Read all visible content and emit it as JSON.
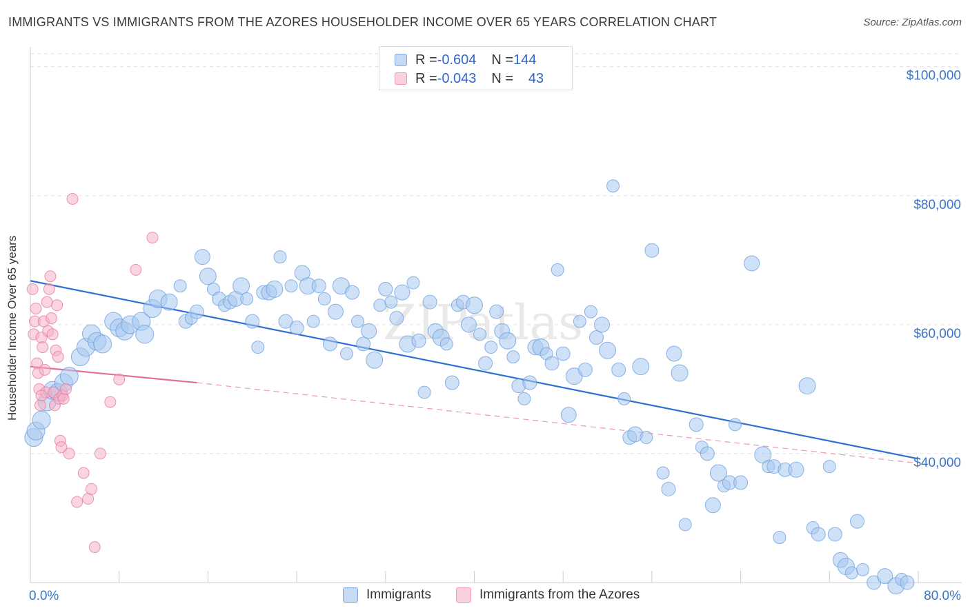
{
  "title": "IMMIGRANTS VS IMMIGRANTS FROM THE AZORES HOUSEHOLDER INCOME OVER 65 YEARS CORRELATION CHART",
  "source": "Source: ZipAtlas.com",
  "watermark": "ZIPatlas",
  "legend": {
    "rows": [
      {
        "r_label": "R = ",
        "r_value": "-0.604",
        "n_label": "N = ",
        "n_value": "144",
        "color": "#a8c8f0"
      },
      {
        "r_label": "R = ",
        "r_value": "-0.043",
        "n_label": "N = ",
        "n_value": "43",
        "color": "#f5b0c6"
      }
    ]
  },
  "bottom_legend": [
    {
      "label": "Immigrants",
      "color": "#a8c8f0"
    },
    {
      "label": "Immigrants from the Azores",
      "color": "#f5b0c6"
    }
  ],
  "chart_data": {
    "type": "scatter",
    "title": "IMMIGRANTS VS IMMIGRANTS FROM THE AZORES HOUSEHOLDER INCOME OVER 65 YEARS CORRELATION CHART",
    "xlabel": "",
    "ylabel": "Householder Income Over 65 years",
    "xlim": [
      0,
      80
    ],
    "ylim": [
      20000,
      102000
    ],
    "x_tick_labels": [
      "0.0%",
      "80.0%"
    ],
    "y_ticks": [
      40000,
      60000,
      80000,
      100000
    ],
    "y_tick_labels": [
      "$40,000",
      "$60,000",
      "$80,000",
      "$100,000"
    ],
    "grid": true,
    "legend_position": "top-center",
    "series": [
      {
        "name": "Immigrants",
        "color": "#6fa0e0",
        "fill": "#a8c8f0",
        "r": -0.604,
        "n": 144,
        "trend": {
          "x0": 0.0,
          "y0": 66800,
          "x1": 80.0,
          "y1": 39200,
          "dashed_to": null
        },
        "points": [
          [
            0.3,
            42500
          ],
          [
            0.5,
            43500
          ],
          [
            1.0,
            45200
          ],
          [
            1.5,
            48000
          ],
          [
            2.0,
            49800
          ],
          [
            2.5,
            49500
          ],
          [
            3.0,
            51000
          ],
          [
            3.5,
            52000
          ],
          [
            4.5,
            55000
          ],
          [
            5.0,
            56500
          ],
          [
            5.5,
            58600
          ],
          [
            6.0,
            57400
          ],
          [
            6.5,
            57000
          ],
          [
            7.5,
            60500
          ],
          [
            8.0,
            59500
          ],
          [
            8.5,
            59000
          ],
          [
            9.0,
            60000
          ],
          [
            10.0,
            60500
          ],
          [
            10.3,
            58500
          ],
          [
            11.0,
            62500
          ],
          [
            11.5,
            64000
          ],
          [
            12.5,
            63500
          ],
          [
            13.5,
            66000
          ],
          [
            14.0,
            60500
          ],
          [
            14.5,
            61000
          ],
          [
            15.0,
            62000
          ],
          [
            15.5,
            70500
          ],
          [
            16.0,
            67500
          ],
          [
            16.5,
            65500
          ],
          [
            17.0,
            64000
          ],
          [
            17.5,
            63000
          ],
          [
            18.0,
            63500
          ],
          [
            18.5,
            64000
          ],
          [
            19.0,
            66000
          ],
          [
            19.5,
            64000
          ],
          [
            20.0,
            60500
          ],
          [
            20.5,
            56500
          ],
          [
            21.0,
            65000
          ],
          [
            21.5,
            65000
          ],
          [
            22.0,
            65500
          ],
          [
            22.5,
            70500
          ],
          [
            23.0,
            60500
          ],
          [
            23.5,
            66000
          ],
          [
            24.0,
            59500
          ],
          [
            24.5,
            68000
          ],
          [
            25.0,
            66000
          ],
          [
            25.5,
            60500
          ],
          [
            26.0,
            66000
          ],
          [
            26.5,
            64000
          ],
          [
            27.0,
            57000
          ],
          [
            27.5,
            62000
          ],
          [
            28.0,
            66000
          ],
          [
            28.5,
            55500
          ],
          [
            29.0,
            65000
          ],
          [
            29.5,
            60500
          ],
          [
            30.0,
            57000
          ],
          [
            30.5,
            59000
          ],
          [
            31.0,
            54500
          ],
          [
            31.5,
            63000
          ],
          [
            32.0,
            65500
          ],
          [
            32.5,
            63500
          ],
          [
            33.0,
            61000
          ],
          [
            33.5,
            65000
          ],
          [
            34.0,
            57000
          ],
          [
            34.5,
            66500
          ],
          [
            35.0,
            57500
          ],
          [
            35.5,
            49500
          ],
          [
            36.0,
            63500
          ],
          [
            36.5,
            59000
          ],
          [
            37.0,
            58000
          ],
          [
            37.5,
            57000
          ],
          [
            38.0,
            51000
          ],
          [
            38.5,
            63000
          ],
          [
            39.0,
            63500
          ],
          [
            39.5,
            60000
          ],
          [
            40.0,
            63000
          ],
          [
            40.5,
            58500
          ],
          [
            41.0,
            54000
          ],
          [
            41.5,
            56500
          ],
          [
            42.0,
            62000
          ],
          [
            42.5,
            59000
          ],
          [
            43.0,
            57500
          ],
          [
            43.5,
            55000
          ],
          [
            44.0,
            50500
          ],
          [
            44.5,
            48500
          ],
          [
            45.0,
            51000
          ],
          [
            45.5,
            56500
          ],
          [
            46.0,
            56500
          ],
          [
            46.5,
            55500
          ],
          [
            47.0,
            54000
          ],
          [
            47.5,
            68500
          ],
          [
            48.0,
            55500
          ],
          [
            48.5,
            46000
          ],
          [
            49.0,
            52000
          ],
          [
            49.5,
            60500
          ],
          [
            50.0,
            53000
          ],
          [
            50.5,
            62000
          ],
          [
            51.0,
            58000
          ],
          [
            51.5,
            60000
          ],
          [
            52.0,
            56000
          ],
          [
            52.5,
            81500
          ],
          [
            53.0,
            53000
          ],
          [
            53.5,
            48500
          ],
          [
            54.0,
            42500
          ],
          [
            54.5,
            43000
          ],
          [
            55.0,
            53500
          ],
          [
            55.5,
            42500
          ],
          [
            56.0,
            71500
          ],
          [
            57.0,
            37000
          ],
          [
            57.5,
            34500
          ],
          [
            58.0,
            55500
          ],
          [
            58.5,
            52500
          ],
          [
            59.0,
            29000
          ],
          [
            60.0,
            44500
          ],
          [
            60.5,
            41000
          ],
          [
            61.0,
            40000
          ],
          [
            61.5,
            32000
          ],
          [
            62.0,
            37000
          ],
          [
            62.5,
            35000
          ],
          [
            63.0,
            35500
          ],
          [
            63.5,
            44500
          ],
          [
            64.0,
            35500
          ],
          [
            65.0,
            69500
          ],
          [
            66.0,
            39800
          ],
          [
            66.5,
            38000
          ],
          [
            67.0,
            38000
          ],
          [
            67.5,
            27000
          ],
          [
            68.0,
            37500
          ],
          [
            69.0,
            37500
          ],
          [
            70.0,
            50500
          ],
          [
            70.5,
            28500
          ],
          [
            71.0,
            27500
          ],
          [
            72.0,
            38000
          ],
          [
            72.5,
            27500
          ],
          [
            73.0,
            23500
          ],
          [
            73.5,
            22500
          ],
          [
            74.0,
            21500
          ],
          [
            74.5,
            29500
          ],
          [
            75.0,
            22000
          ],
          [
            76.0,
            20000
          ],
          [
            77.0,
            21000
          ],
          [
            78.0,
            19500
          ],
          [
            78.5,
            20500
          ],
          [
            79.0,
            20000
          ]
        ]
      },
      {
        "name": "Immigrants from the Azores",
        "color": "#e87aa0",
        "fill": "#f5b0c6",
        "r": -0.043,
        "n": 43,
        "trend": {
          "x0": 0.0,
          "y0": 53500,
          "x1": 15.0,
          "y1": 51000,
          "dashed_to": [
            80.0,
            38500
          ]
        },
        "points": [
          [
            0.2,
            65500
          ],
          [
            0.3,
            58500
          ],
          [
            0.4,
            60500
          ],
          [
            0.5,
            62500
          ],
          [
            0.6,
            54000
          ],
          [
            0.7,
            52500
          ],
          [
            0.8,
            50000
          ],
          [
            0.9,
            47500
          ],
          [
            1.0,
            58000
          ],
          [
            1.1,
            56500
          ],
          [
            1.2,
            60500
          ],
          [
            1.3,
            53000
          ],
          [
            1.4,
            49500
          ],
          [
            1.5,
            63500
          ],
          [
            1.6,
            59000
          ],
          [
            1.7,
            65500
          ],
          [
            1.8,
            67500
          ],
          [
            1.9,
            61000
          ],
          [
            2.0,
            58500
          ],
          [
            2.1,
            49500
          ],
          [
            2.2,
            47500
          ],
          [
            2.3,
            56000
          ],
          [
            2.4,
            63000
          ],
          [
            2.5,
            55000
          ],
          [
            2.6,
            48500
          ],
          [
            2.7,
            42000
          ],
          [
            2.8,
            41000
          ],
          [
            2.9,
            49000
          ],
          [
            3.0,
            48500
          ],
          [
            3.2,
            50000
          ],
          [
            3.5,
            40000
          ],
          [
            3.8,
            79500
          ],
          [
            4.2,
            32500
          ],
          [
            4.8,
            37000
          ],
          [
            5.2,
            33000
          ],
          [
            5.5,
            34500
          ],
          [
            5.8,
            25500
          ],
          [
            6.3,
            40000
          ],
          [
            7.2,
            48000
          ],
          [
            8.0,
            51500
          ],
          [
            9.5,
            68500
          ],
          [
            11.0,
            73500
          ],
          [
            1.0,
            49000
          ]
        ]
      }
    ]
  }
}
